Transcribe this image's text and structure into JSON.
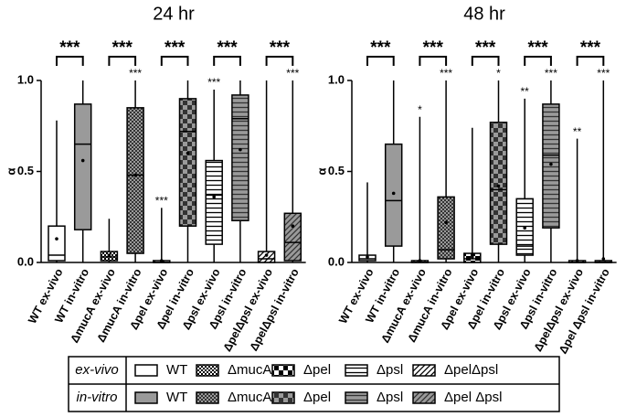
{
  "chart_data": [
    {
      "type": "box",
      "title": "24 hr",
      "y_label": "α",
      "ylim": [
        0,
        1
      ],
      "yticks": [
        {
          "value": 0,
          "label": "0.0"
        },
        {
          "value": 0.5,
          "label": "0.5"
        },
        {
          "value": 1,
          "label": "1.0"
        }
      ],
      "categories": [
        "WT ex-vivo",
        "WT in-vitro",
        "ΔmucA ex-vivo",
        "ΔmucA in-vitro",
        "Δpel ex-vivo",
        "Δpel in-vitro",
        "Δpsl ex-vivo",
        "Δpsl in-vitro",
        "ΔpelΔpsl ex-vivo",
        "ΔpelΔpsl in-vitro"
      ],
      "boxes": [
        {
          "min": 0,
          "q1": 0.01,
          "median": 0.04,
          "q3": 0.2,
          "max": 0.78,
          "mean": 0.13
        },
        {
          "min": 0,
          "q1": 0.18,
          "median": 0.65,
          "q3": 0.87,
          "max": 1,
          "mean": 0.56
        },
        {
          "min": 0,
          "q1": 0.01,
          "median": 0.03,
          "q3": 0.06,
          "max": 0.24,
          "mean": 0.04
        },
        {
          "min": 0,
          "q1": 0.05,
          "median": 0.48,
          "q3": 0.85,
          "max": 1,
          "mean": 0.48
        },
        {
          "min": 0,
          "q1": 0,
          "median": 0,
          "q3": 0.01,
          "max": 0.3,
          "mean": 0.01
        },
        {
          "min": 0,
          "q1": 0.2,
          "median": 0.72,
          "q3": 0.9,
          "max": 1,
          "mean": 0.6
        },
        {
          "min": 0,
          "q1": 0.1,
          "median": 0.37,
          "q3": 0.56,
          "max": 0.95,
          "mean": 0.36
        },
        {
          "min": 0,
          "q1": 0.23,
          "median": 0.79,
          "q3": 0.92,
          "max": 1,
          "mean": 0.62
        },
        {
          "min": 0,
          "q1": 0,
          "median": 0.02,
          "q3": 0.06,
          "max": 1,
          "mean": 0.04
        },
        {
          "min": 0,
          "q1": 0.01,
          "median": 0.11,
          "q3": 0.27,
          "max": 1,
          "mean": 0.2
        }
      ],
      "stars": [
        null,
        null,
        null,
        "***",
        "***",
        null,
        "***",
        null,
        null,
        "***"
      ],
      "pair_labels": [
        "***",
        "***",
        "***",
        "***",
        "***"
      ]
    },
    {
      "type": "box",
      "title": "48 hr",
      "y_label": "α",
      "ylim": [
        0,
        1
      ],
      "yticks": [
        {
          "value": 0,
          "label": "0.0"
        },
        {
          "value": 0.5,
          "label": "0.5"
        },
        {
          "value": 1,
          "label": "1.0"
        }
      ],
      "categories": [
        "WT ex-vivo",
        "WT in-vitro",
        "ΔmucA ex-vivo",
        "ΔmucA in-vitro",
        "Δpel ex-vivo",
        "Δpel in-vitro",
        "Δpsl ex-vivo",
        "Δpsl in-vitro",
        "ΔpelΔpsl ex-vivo",
        "Δpel Δpsl in-vitro"
      ],
      "boxes": [
        {
          "min": 0,
          "q1": 0.01,
          "median": 0.02,
          "q3": 0.04,
          "max": 0.44,
          "mean": 0.03
        },
        {
          "min": 0,
          "q1": 0.09,
          "median": 0.34,
          "q3": 0.65,
          "max": 1,
          "mean": 0.38
        },
        {
          "min": 0,
          "q1": 0,
          "median": 0,
          "q3": 0.01,
          "max": 0.8,
          "mean": 0.01
        },
        {
          "min": 0,
          "q1": 0.02,
          "median": 0.07,
          "q3": 0.36,
          "max": 1,
          "mean": 0.22
        },
        {
          "min": 0,
          "q1": 0,
          "median": 0.02,
          "q3": 0.05,
          "max": 0.74,
          "mean": 0.03
        },
        {
          "min": 0,
          "q1": 0.1,
          "median": 0.4,
          "q3": 0.77,
          "max": 1,
          "mean": 0.42
        },
        {
          "min": 0,
          "q1": 0.04,
          "median": 0.09,
          "q3": 0.35,
          "max": 0.9,
          "mean": 0.19
        },
        {
          "min": 0,
          "q1": 0.19,
          "median": 0.59,
          "q3": 0.87,
          "max": 1,
          "mean": 0.54
        },
        {
          "min": 0,
          "q1": 0,
          "median": 0,
          "q3": 0.01,
          "max": 0.68,
          "mean": 0.01
        },
        {
          "min": 0,
          "q1": 0,
          "median": 0,
          "q3": 0.01,
          "max": 1,
          "mean": 0.02
        }
      ],
      "stars": [
        null,
        null,
        "*",
        "***",
        null,
        "*",
        "**",
        "***",
        "**",
        "***"
      ],
      "pair_labels": [
        "***",
        "***",
        "***",
        "***",
        "***"
      ]
    }
  ],
  "box_colors": [
    "#ffffff",
    "#9a9a9a"
  ],
  "legend": {
    "rows": [
      {
        "label": "ex-vivo",
        "items": [
          "WT",
          "ΔmucA",
          "Δpel",
          "Δpsl",
          "ΔpelΔpsl"
        ]
      },
      {
        "label": "in-vitro",
        "items": [
          "WT",
          "ΔmucA",
          "Δpel",
          "Δpsl",
          "Δpel Δpsl"
        ]
      }
    ]
  }
}
